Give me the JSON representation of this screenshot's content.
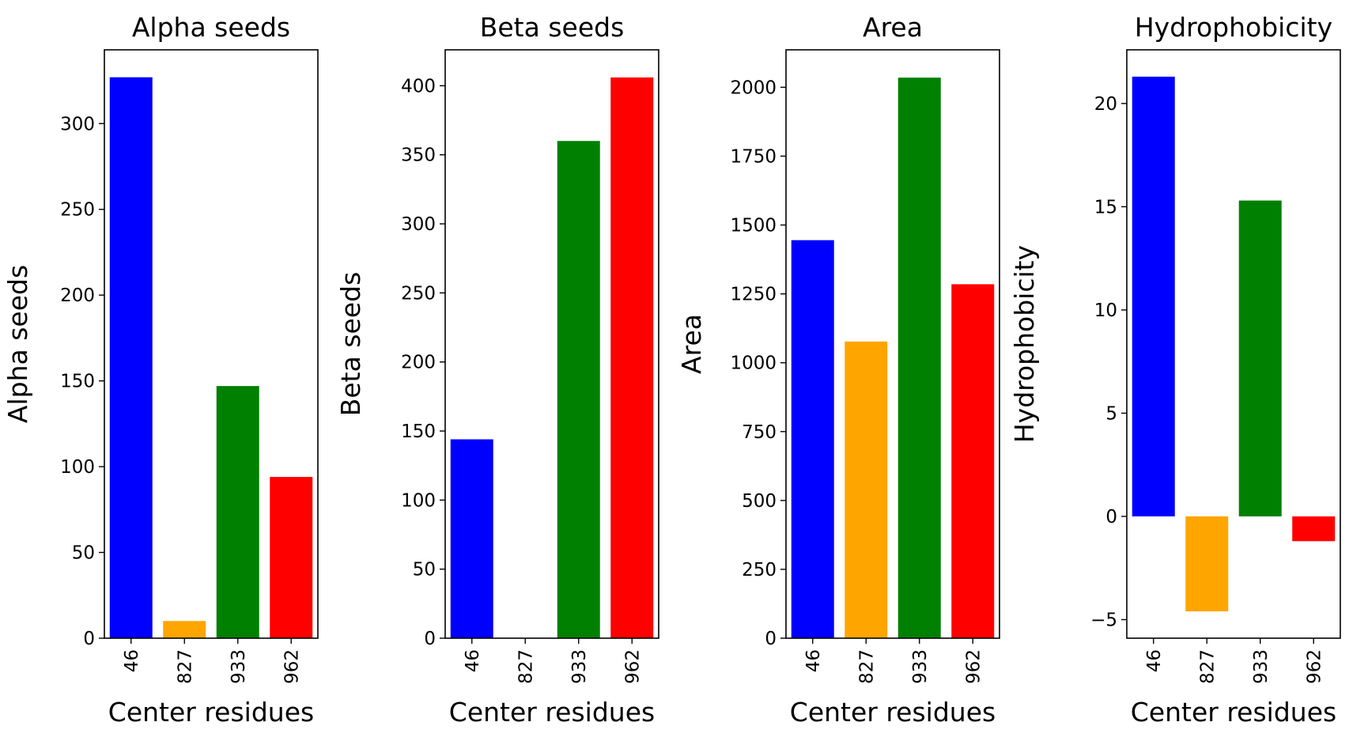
{
  "chart_data": [
    {
      "type": "bar",
      "title": "Alpha seeds",
      "xlabel": "Center residues",
      "ylabel": "Alpha seeds",
      "categories": [
        "46",
        "827",
        "933",
        "962"
      ],
      "values": [
        327,
        10,
        147,
        94
      ],
      "colors": [
        "#0000ff",
        "#ffa500",
        "#008000",
        "#ff0000"
      ],
      "ylim": [
        0,
        343
      ],
      "yticks": [
        0,
        50,
        100,
        150,
        200,
        250,
        300
      ],
      "ytick_labels": [
        "0",
        "50",
        "100",
        "150",
        "200",
        "250",
        "300"
      ],
      "grid": false,
      "legend": "none"
    },
    {
      "type": "bar",
      "title": "Beta seeds",
      "xlabel": "Center residues",
      "ylabel": "Beta seeds",
      "categories": [
        "46",
        "827",
        "933",
        "962"
      ],
      "values": [
        144,
        0,
        360,
        406
      ],
      "colors": [
        "#0000ff",
        "#ffa500",
        "#008000",
        "#ff0000"
      ],
      "ylim": [
        0,
        426
      ],
      "yticks": [
        0,
        50,
        100,
        150,
        200,
        250,
        300,
        350,
        400
      ],
      "ytick_labels": [
        "0",
        "50",
        "100",
        "150",
        "200",
        "250",
        "300",
        "350",
        "400"
      ],
      "grid": false,
      "legend": "none"
    },
    {
      "type": "bar",
      "title": "Area",
      "xlabel": "Center residues",
      "ylabel": "Area",
      "categories": [
        "46",
        "827",
        "933",
        "962"
      ],
      "values": [
        1445,
        1077,
        2035,
        1285
      ],
      "colors": [
        "#0000ff",
        "#ffa500",
        "#008000",
        "#ff0000"
      ],
      "ylim": [
        0,
        2136
      ],
      "yticks": [
        0,
        250,
        500,
        750,
        1000,
        1250,
        1500,
        1750,
        2000
      ],
      "ytick_labels": [
        "0",
        "250",
        "500",
        "750",
        "1000",
        "1250",
        "1500",
        "1750",
        "2000"
      ],
      "grid": false,
      "legend": "none"
    },
    {
      "type": "bar",
      "title": "Hydrophobicity",
      "xlabel": "Center residues",
      "ylabel": "Hydrophobicity",
      "categories": [
        "46",
        "827",
        "933",
        "962"
      ],
      "values": [
        21.3,
        -4.6,
        15.3,
        -1.2
      ],
      "colors": [
        "#0000ff",
        "#ffa500",
        "#008000",
        "#ff0000"
      ],
      "ylim": [
        -5.9,
        22.6
      ],
      "yticks": [
        -5,
        0,
        5,
        10,
        15,
        20
      ],
      "ytick_labels": [
        "−5",
        "0",
        "5",
        "10",
        "15",
        "20"
      ],
      "grid": false,
      "legend": "none"
    }
  ]
}
